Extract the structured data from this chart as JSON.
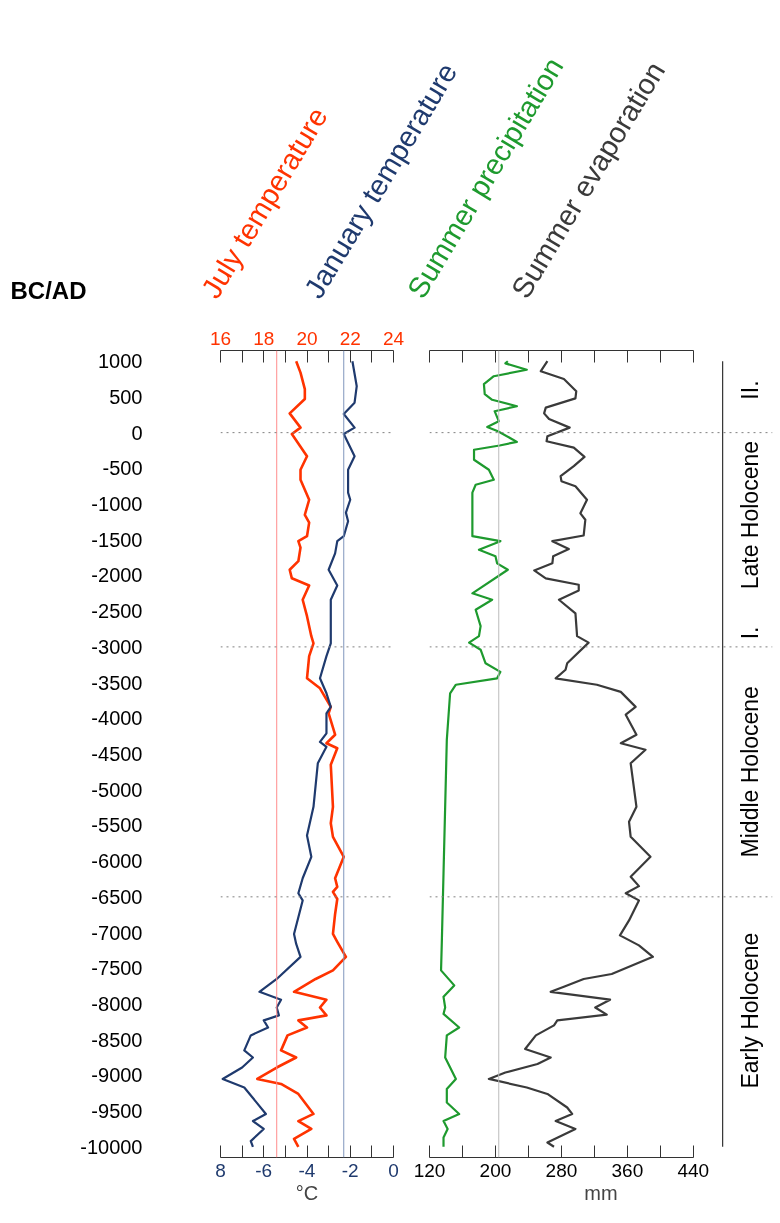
{
  "chart_data": [
    {
      "type": "line",
      "orientation": "horizontal",
      "ylabel": "BC/AD",
      "xlabel": "°C",
      "ylim": [
        -10150,
        1150
      ],
      "yticks": [
        -10000,
        -9500,
        -9000,
        -8500,
        -8000,
        -7500,
        -7000,
        -6500,
        -6000,
        -5500,
        -5000,
        -4500,
        -4000,
        -3500,
        -3000,
        -2500,
        -2000,
        -1500,
        -1000,
        -500,
        0,
        500,
        1000
      ],
      "xlim": [
        -8,
        0
      ],
      "xticks": [
        {
          "value": -8,
          "label": "8"
        },
        {
          "value": -7,
          "label": null
        },
        -6,
        {
          "value": -5,
          "label": null
        },
        -4,
        {
          "value": -3,
          "label": null
        },
        -2,
        {
          "value": -1,
          "label": null
        },
        0
      ],
      "x2lim": [
        16,
        24
      ],
      "x2ticks": [
        16,
        {
          "value": 17,
          "label": null
        },
        18,
        {
          "value": 19,
          "label": null
        },
        20,
        {
          "value": 21,
          "label": null
        },
        22,
        {
          "value": 23,
          "label": null
        },
        24
      ],
      "grid": false,
      "ref_lines": [
        {
          "axis": "x2",
          "value": 18.6,
          "color": "#ff8c8c"
        },
        {
          "axis": "x",
          "value": -2.3,
          "color": "#8196bd"
        },
        {
          "axis": "y",
          "value": 0,
          "color": "#808080",
          "line_style": "dotted"
        },
        {
          "axis": "y",
          "value": -3000,
          "color": "#808080",
          "line_style": "dotted"
        },
        {
          "axis": "y",
          "value": -6500,
          "color": "#808080",
          "line_style": "dotted"
        }
      ],
      "series": [
        {
          "name": "July temperature",
          "color": "#ff3300",
          "axis": "x2",
          "x": [
            1000,
            840,
            610,
            470,
            270,
            70,
            -20,
            -330,
            -520,
            -660,
            -940,
            -1150,
            -1260,
            -1450,
            -1520,
            -1610,
            -1800,
            -1920,
            -2040,
            -2140,
            -2340,
            -2570,
            -2850,
            -2950,
            -3130,
            -3440,
            -3580,
            -3840,
            -3930,
            -4230,
            -4350,
            -4420,
            -4650,
            -5240,
            -5470,
            -5660,
            -5940,
            -6240,
            -6360,
            -6430,
            -6530,
            -6740,
            -7020,
            -7130,
            -7340,
            -7530,
            -7650,
            -7830,
            -7940,
            -8050,
            -8160,
            -8230,
            -8330,
            -8440,
            -8650,
            -8750,
            -8890,
            -9050,
            -9120,
            -9260,
            -9540,
            -9640,
            -9750,
            -9890,
            -10000
          ],
          "values": [
            19.5,
            19.7,
            19.9,
            19.9,
            19.2,
            19.7,
            19.3,
            20.0,
            19.7,
            19.7,
            20.1,
            19.9,
            20.1,
            20.0,
            19.6,
            19.7,
            19.6,
            19.2,
            19.3,
            20.1,
            19.8,
            20.0,
            20.2,
            20.3,
            20.1,
            20.0,
            20.6,
            21.1,
            21.0,
            21.3,
            20.9,
            21.4,
            21.1,
            21.2,
            21.1,
            21.2,
            21.7,
            21.3,
            21.4,
            21.2,
            21.4,
            21.3,
            21.2,
            21.4,
            21.8,
            21.2,
            20.4,
            19.4,
            20.9,
            20.6,
            20.9,
            19.6,
            20.0,
            19.1,
            18.8,
            19.5,
            18.6,
            17.7,
            18.8,
            19.6,
            20.3,
            19.6,
            20.2,
            19.4,
            19.6
          ]
        },
        {
          "name": "January temperature",
          "color": "#1f3a6e",
          "x": [
            1000,
            650,
            420,
            260,
            70,
            -20,
            -330,
            -520,
            -840,
            -940,
            -1120,
            -1240,
            -1450,
            -1520,
            -1690,
            -1920,
            -2140,
            -2340,
            -2670,
            -2950,
            -3130,
            -3440,
            -3650,
            -3840,
            -3930,
            -4210,
            -4330,
            -4400,
            -4630,
            -5240,
            -5640,
            -5940,
            -6240,
            -6450,
            -6550,
            -7020,
            -7160,
            -7340,
            -7650,
            -7830,
            -7940,
            -8050,
            -8160,
            -8230,
            -8330,
            -8440,
            -8650,
            -8750,
            -8890,
            -9050,
            -9170,
            -9540,
            -9640,
            -9750,
            -9920,
            -10000
          ],
          "values": [
            -1.9,
            -1.7,
            -1.8,
            -2.3,
            -1.8,
            -2.3,
            -1.8,
            -2.1,
            -2.1,
            -2.0,
            -2.2,
            -2.1,
            -2.3,
            -2.6,
            -2.7,
            -3.0,
            -2.6,
            -2.9,
            -2.9,
            -2.9,
            -3.1,
            -3.4,
            -3.1,
            -2.9,
            -3.1,
            -3.1,
            -3.4,
            -3.1,
            -3.5,
            -3.7,
            -4.0,
            -3.8,
            -4.2,
            -4.4,
            -4.2,
            -4.6,
            -4.5,
            -4.3,
            -5.4,
            -6.2,
            -5.2,
            -5.4,
            -5.3,
            -6.0,
            -5.8,
            -6.6,
            -6.9,
            -6.5,
            -7.0,
            -7.9,
            -6.9,
            -5.9,
            -6.5,
            -6.0,
            -6.6,
            -6.5
          ]
        }
      ]
    },
    {
      "type": "line",
      "orientation": "horizontal",
      "xlabel": "mm",
      "tick_labels": "x",
      "ylim": [
        -10150,
        1150
      ],
      "yticks": [
        -10000,
        -9500,
        -9000,
        -8500,
        -8000,
        -7500,
        -7000,
        -6500,
        -6000,
        -5500,
        -5000,
        -4500,
        -4000,
        -3500,
        -3000,
        -2500,
        -2000,
        -1500,
        -1000,
        -500,
        0,
        500,
        1000
      ],
      "xlim": [
        120,
        440
      ],
      "xticks": [
        120,
        {
          "value": 160,
          "label": null
        },
        200,
        {
          "value": 240,
          "label": null
        },
        280,
        {
          "value": 320,
          "label": null
        },
        360,
        {
          "value": 400,
          "label": null
        },
        440
      ],
      "grid": false,
      "ref_lines": [
        {
          "axis": "x",
          "value": 204,
          "color": "#bbbbbb"
        },
        {
          "axis": "y",
          "value": 0,
          "color": "#808080",
          "line_style": "dotted"
        },
        {
          "axis": "y",
          "value": -3000,
          "color": "#808080",
          "line_style": "dotted"
        },
        {
          "axis": "y",
          "value": -6500,
          "color": "#808080",
          "line_style": "dotted"
        }
      ],
      "annotations": [
        "II.",
        "Late Holocene",
        "I.",
        "Middle Holocene",
        "Early Holocene"
      ],
      "series": [
        {
          "name": "Summer precipitation",
          "color": "#1e9a2e",
          "x": [
            1000,
            970,
            880,
            790,
            680,
            540,
            460,
            370,
            300,
            160,
            80,
            20,
            -130,
            -180,
            -240,
            -380,
            -520,
            -660,
            -730,
            -840,
            -1450,
            -1520,
            -1640,
            -1730,
            -1830,
            -1920,
            -2250,
            -2340,
            -2480,
            -2710,
            -2850,
            -2940,
            -3040,
            -3230,
            -3350,
            -3440,
            -3530,
            -3650,
            -4300,
            -5240,
            -6170,
            -7110,
            -7530,
            -7740,
            -7900,
            -8050,
            -8140,
            -8330,
            -8440,
            -8750,
            -9050,
            -9190,
            -9380,
            -9540,
            -9640,
            -9750,
            -9870,
            -10000
          ],
          "values": [
            215,
            212,
            238,
            198,
            186,
            187,
            196,
            226,
            199,
            204,
            190,
            203,
            226,
            205,
            174,
            174,
            192,
            198,
            176,
            172,
            172,
            206,
            180,
            200,
            202,
            215,
            172,
            196,
            176,
            182,
            180,
            168,
            182,
            188,
            206,
            202,
            152,
            145,
            141,
            139,
            137,
            135,
            134,
            150,
            137,
            139,
            137,
            156,
            141,
            139,
            152,
            141,
            141,
            156,
            137,
            142,
            137,
            137
          ]
        },
        {
          "name": "Summer evaporation",
          "color": "#3a3a3a",
          "x": [
            1000,
            860,
            750,
            580,
            480,
            350,
            270,
            190,
            70,
            -50,
            -120,
            -210,
            -340,
            -470,
            -610,
            -680,
            -750,
            -940,
            -1130,
            -1220,
            -1440,
            -1520,
            -1630,
            -1730,
            -1830,
            -1930,
            -2040,
            -2130,
            -2210,
            -2340,
            -2530,
            -2850,
            -2940,
            -3230,
            -3320,
            -3440,
            -3530,
            -3630,
            -3840,
            -3950,
            -4230,
            -4350,
            -4440,
            -4630,
            -5240,
            -5450,
            -5660,
            -5940,
            -6080,
            -6220,
            -6350,
            -6450,
            -6550,
            -6830,
            -7040,
            -7180,
            -7340,
            -7580,
            -7650,
            -7760,
            -7830,
            -7940,
            -8050,
            -8150,
            -8230,
            -8300,
            -8440,
            -8630,
            -8750,
            -8840,
            -8960,
            -9050,
            -9170,
            -9260,
            -9450,
            -9540,
            -9640,
            -9750,
            -9940,
            -10000
          ],
          "values": [
            263,
            255,
            283,
            298,
            297,
            261,
            259,
            265,
            290,
            263,
            262,
            295,
            308,
            295,
            279,
            280,
            297,
            311,
            303,
            309,
            307,
            269,
            289,
            270,
            269,
            247,
            261,
            301,
            301,
            277,
            297,
            299,
            313,
            287,
            285,
            273,
            323,
            352,
            370,
            358,
            371,
            352,
            382,
            364,
            371,
            362,
            364,
            388,
            376,
            364,
            374,
            358,
            374,
            362,
            351,
            374,
            391,
            341,
            307,
            283,
            267,
            339,
            321,
            335,
            275,
            271,
            249,
            236,
            267,
            251,
            212,
            192,
            238,
            263,
            287,
            293,
            273,
            297,
            263,
            271
          ]
        }
      ]
    }
  ]
}
